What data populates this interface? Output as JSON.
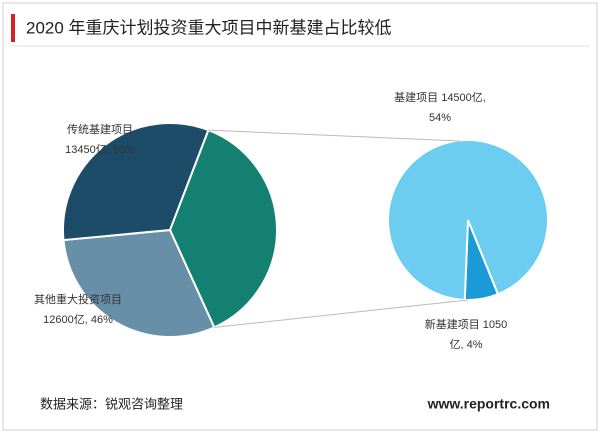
{
  "chart_data": {
    "type": "pie-of-pie",
    "title": "2020 年重庆计划投资重大项目中新基建占比较低",
    "source": "数据来源：锐观咨询整理",
    "watermark": "www.reportrc.com",
    "main_pie": {
      "values": [
        15550,
        12600,
        13450
      ],
      "colors": [
        "#138072",
        "#6790a8",
        "#1c4c68"
      ],
      "value_labels": [
        null,
        [
          "其他重大投资项目",
          "12600亿, 46%"
        ],
        [
          "传统基建项目",
          "13450亿, 50%"
        ]
      ]
    },
    "sub_pie": {
      "values": [
        1050,
        14500
      ],
      "colors": [
        "#1a9ad6",
        "#6ccdf1"
      ],
      "value_labels": [
        [
          "新基建项目 1050",
          "亿, 4%"
        ],
        [
          "基建项目 14500亿,",
          "54%"
        ]
      ]
    }
  }
}
